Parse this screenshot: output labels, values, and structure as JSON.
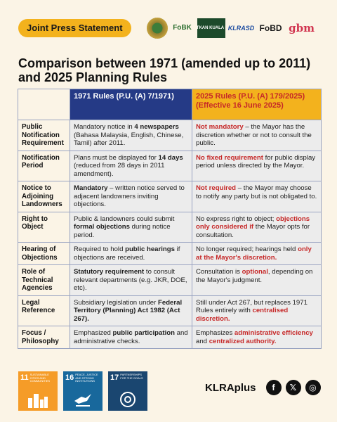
{
  "header": {
    "badge": "Joint Press Statement",
    "logos": [
      {
        "name": "community-seal-logo"
      },
      {
        "name": "fobk-logo",
        "text": "FoBK"
      },
      {
        "name": "selamatkan-kl-logo",
        "text": "SELAMATKAN KUALA LUMPUR"
      },
      {
        "name": "klrasd-logo",
        "text": "KLRASD"
      },
      {
        "name": "fobd-logo",
        "text": "FoBD"
      },
      {
        "name": "gbm-logo",
        "text": "gbm"
      }
    ]
  },
  "title": "Comparison between 1971 (amended up to 2011) and 2025 Planning Rules",
  "table": {
    "col_1971": "1971 Rules (P.U. (A) 7/1971)",
    "col_2025": "2025 Rules (P.U. (A) 179/2025) (Effective 16 June 2025)",
    "rows": [
      {
        "label": "Public Notification Requirement",
        "v1971": [
          [
            "",
            "Mandatory notice in "
          ],
          [
            "b",
            "4 newspapers"
          ],
          [
            "",
            " (Bahasa Malaysia, English, Chinese, Tamil) after 2011."
          ]
        ],
        "v2025": [
          [
            "red",
            "Not mandatory"
          ],
          [
            "",
            " – the Mayor has the discretion whether or not to consult the public."
          ]
        ]
      },
      {
        "label": "Notification Period",
        "v1971": [
          [
            "",
            "Plans must be displayed for "
          ],
          [
            "b",
            "14 days"
          ],
          [
            "",
            " (reduced from 28 days in 2011 amendment)."
          ]
        ],
        "v2025": [
          [
            "red",
            "No fixed requirement"
          ],
          [
            "",
            " for public display period unless directed by the Mayor."
          ]
        ]
      },
      {
        "label": "Notice to Adjoining Landowners",
        "v1971": [
          [
            "b",
            "Mandatory"
          ],
          [
            "",
            " – written notice served to adjacent landowners inviting objections."
          ]
        ],
        "v2025": [
          [
            "red",
            "Not required"
          ],
          [
            "",
            " – the Mayor may choose to notify any party but is not obligated to."
          ]
        ]
      },
      {
        "label": "Right to Object",
        "v1971": [
          [
            "",
            "Public & landowners could submit "
          ],
          [
            "b",
            "formal objections"
          ],
          [
            "",
            " during notice period."
          ]
        ],
        "v2025": [
          [
            "",
            "No express right to object; "
          ],
          [
            "red",
            "objections only considered if"
          ],
          [
            "",
            " the Mayor opts for consultation."
          ]
        ]
      },
      {
        "label": "Hearing of Objections",
        "v1971": [
          [
            "",
            "Required to hold "
          ],
          [
            "b",
            "public hearings"
          ],
          [
            "",
            " if objections are received."
          ]
        ],
        "v2025": [
          [
            "",
            "No longer required; hearings held "
          ],
          [
            "red",
            "only at the Mayor's discretion."
          ]
        ]
      },
      {
        "label": "Role of Technical Agencies",
        "v1971": [
          [
            "b",
            "Statutory requirement"
          ],
          [
            "",
            " to consult relevant departments (e.g. JKR, DOE, etc)."
          ]
        ],
        "v2025": [
          [
            "",
            "Consultation is "
          ],
          [
            "red",
            "optional"
          ],
          [
            "",
            ", depending on the Mayor's judgment."
          ]
        ]
      },
      {
        "label": "Legal Reference",
        "v1971": [
          [
            "",
            "Subsidiary legislation under "
          ],
          [
            "b",
            "Federal Territory (Planning) Act 1982 (Act 267)."
          ]
        ],
        "v2025": [
          [
            "",
            "Still under Act 267, but replaces 1971 Rules entirely with "
          ],
          [
            "red",
            "centralised discretion."
          ]
        ]
      },
      {
        "label": "Focus / Philosophy",
        "v1971": [
          [
            "",
            "Emphasized "
          ],
          [
            "b",
            "public participation"
          ],
          [
            "",
            " and administrative checks."
          ]
        ],
        "v2025": [
          [
            "",
            "Emphasizes "
          ],
          [
            "red",
            "administrative efficiency"
          ],
          [
            "",
            " and "
          ],
          [
            "red",
            "centralized authority."
          ]
        ]
      }
    ]
  },
  "sdgs": [
    {
      "num": "11",
      "text": "SUSTAINABLE CITIES AND COMMUNITIES",
      "color": "#f59c28"
    },
    {
      "num": "16",
      "text": "PEACE, JUSTICE AND STRONG INSTITUTIONS",
      "color": "#18689c"
    },
    {
      "num": "17",
      "text": "PARTNERSHIPS FOR THE GOALS",
      "color": "#1a4670"
    }
  ],
  "footer": {
    "brand": "KLRAplus",
    "socials": [
      {
        "name": "facebook-icon",
        "glyph": "f"
      },
      {
        "name": "x-icon",
        "glyph": "𝕏"
      },
      {
        "name": "instagram-icon",
        "glyph": "◎"
      }
    ]
  },
  "colors": {
    "background": "#fbf4e6",
    "accent": "#f3b21d",
    "navy": "#253a86",
    "red": "#c62828"
  }
}
